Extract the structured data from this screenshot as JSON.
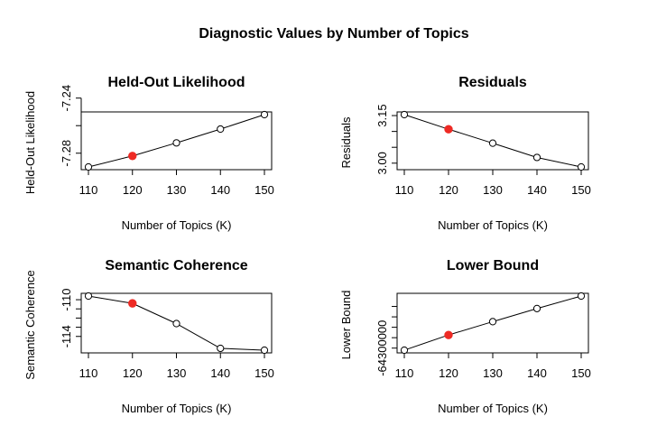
{
  "figure_title": "Diagnostic Values by Number of Topics",
  "colors": {
    "highlight": "#ee2a24",
    "line": "#000000",
    "frame": "#000000"
  },
  "chart_data": [
    {
      "type": "line",
      "title": "Held-Out Likelihood",
      "xlabel": "Number of Topics (K)",
      "ylabel": "Held-Out Likelihood",
      "x": [
        110,
        120,
        130,
        140,
        150
      ],
      "y": [
        -7.29,
        -7.282,
        -7.2725,
        -7.2625,
        -7.252
      ],
      "highlight_index": 1,
      "xticks": [
        "110",
        "120",
        "130",
        "140",
        "150"
      ],
      "yticks": [
        {
          "value": -7.28,
          "label": "-7.28"
        },
        {
          "value": -7.26,
          "label": ""
        },
        {
          "value": -7.24,
          "label": "-7.24"
        }
      ],
      "ylim": [
        -7.29,
        -7.252
      ]
    },
    {
      "type": "line",
      "title": "Residuals",
      "xlabel": "Number of Topics (K)",
      "ylabel": "Residuals",
      "x": [
        110,
        120,
        130,
        140,
        150
      ],
      "y": [
        3.153,
        3.107,
        3.063,
        3.018,
        2.988
      ],
      "highlight_index": 1,
      "xticks": [
        "110",
        "120",
        "130",
        "140",
        "150"
      ],
      "yticks": [
        {
          "value": 3.0,
          "label": "3.00"
        },
        {
          "value": 3.05,
          "label": ""
        },
        {
          "value": 3.1,
          "label": ""
        },
        {
          "value": 3.15,
          "label": "3.15"
        }
      ],
      "ylim": [
        2.988,
        3.153
      ]
    },
    {
      "type": "line",
      "title": "Semantic Coherence",
      "xlabel": "Number of Topics (K)",
      "ylabel": "Semantic Coherence",
      "x": [
        110,
        120,
        130,
        140,
        150
      ],
      "y": [
        -109.6,
        -110.4,
        -112.6,
        -115.3,
        -115.5
      ],
      "highlight_index": 1,
      "xticks": [
        "110",
        "120",
        "130",
        "140",
        "150"
      ],
      "yticks": [
        {
          "value": -114,
          "label": "-114"
        },
        {
          "value": -113,
          "label": ""
        },
        {
          "value": -112,
          "label": ""
        },
        {
          "value": -111,
          "label": ""
        },
        {
          "value": -110,
          "label": "-110"
        }
      ],
      "ylim": [
        -115.5,
        -109.6
      ]
    },
    {
      "type": "line",
      "title": "Lower Bound",
      "xlabel": "Number of Topics (K)",
      "ylabel": "Lower Bound",
      "x": [
        110,
        120,
        130,
        140,
        150
      ],
      "y": [
        -64310000,
        -64237000,
        -64173000,
        -64110000,
        -64050000
      ],
      "highlight_index": 1,
      "xticks": [
        "110",
        "120",
        "130",
        "140",
        "150"
      ],
      "yticks": [
        {
          "value": -64300000,
          "label": "-64300000"
        },
        {
          "value": -64250000,
          "label": ""
        },
        {
          "value": -64200000,
          "label": ""
        },
        {
          "value": -64150000,
          "label": ""
        },
        {
          "value": -64100000,
          "label": ""
        }
      ],
      "ylim": [
        -64310000,
        -64050000
      ]
    }
  ]
}
